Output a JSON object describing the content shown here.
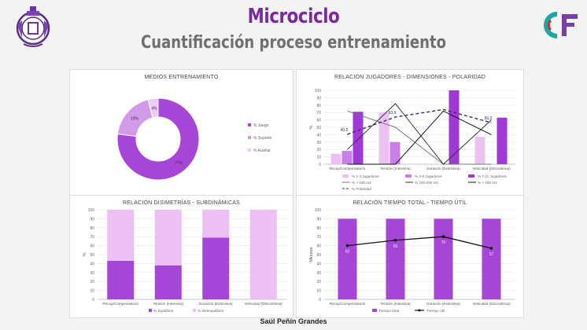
{
  "header": {
    "title": "Microciclo",
    "subtitle": "Cuantificación proceso entrenamiento",
    "footer": "Saúl Peñín Grandes"
  },
  "logos": {
    "left": "club-crest-logo",
    "right_text": "CF",
    "right_colors": [
      "#1aa6a1",
      "#c0392b",
      "#8e44ad"
    ]
  },
  "colors": {
    "purple_dark": "#9b30d0",
    "purple_mid": "#c474e6",
    "purple_light": "#e9b7f3",
    "line_black": "#111111"
  },
  "chart_data": [
    {
      "type": "pie",
      "title": "MEDIOS ENTRENAMIENTO",
      "donut": true,
      "slices": [
        {
          "label": "% Juego",
          "value": 77,
          "color": "#a646d6"
        },
        {
          "label": "% Soporte",
          "value": 19,
          "color": "#d49aea"
        },
        {
          "label": "% Auxiliar",
          "value": 4,
          "color": "#eecbf6"
        }
      ],
      "slice_labels": [
        "77%",
        "19%",
        "4%"
      ],
      "legend_position": "right"
    },
    {
      "type": "bar",
      "title": "RELACIÓN JUGADORES - DIMENSIONES - POLARIDAD",
      "categories": [
        "Recup/Compensatorio",
        "Tensión (Intensiva)",
        "Duración (Extensiva)",
        "Velocidad (Discontinua)"
      ],
      "ylabel": "%",
      "ylim": [
        0,
        100
      ],
      "yticks": [
        0,
        10,
        20,
        30,
        40,
        50,
        60,
        70,
        80,
        90,
        100
      ],
      "series": [
        {
          "name": "% 1-3 Jugadores",
          "kind": "bar",
          "color": "#ecc0f5",
          "values": [
            14,
            70,
            0,
            37
          ]
        },
        {
          "name": "% 4-6 Jugadores",
          "kind": "bar",
          "color": "#c97ee8",
          "values": [
            18,
            30,
            0,
            0
          ]
        },
        {
          "name": "% 7-11 Jugadores",
          "kind": "bar",
          "color": "#a038d6",
          "values": [
            71,
            0,
            100,
            63
          ]
        },
        {
          "name": "% < 100 m2",
          "kind": "line",
          "color": "#777777",
          "values": [
            72,
            50,
            0,
            0
          ]
        },
        {
          "name": "% 100-200 m2",
          "kind": "line",
          "color": "#333333",
          "values": [
            20,
            82,
            0,
            60
          ]
        },
        {
          "name": "% > 200 m2",
          "kind": "line",
          "color": "#111111",
          "values": [
            0,
            0,
            72,
            40
          ]
        },
        {
          "name": "% Polaridad",
          "kind": "dashed",
          "color": "#3a2a6e",
          "values": [
            40.5,
            63.9,
            74,
            56.2
          ]
        }
      ],
      "data_labels": [
        "40,5",
        "63,9",
        "56,2"
      ],
      "legend_position": "bottom"
    },
    {
      "type": "bar",
      "stacked": true,
      "title": "RELACIÓN DISIMETRÍAS - SUBDINÁMICAS",
      "categories": [
        "Recup/Compensatorio",
        "Tensión (Intensiva)",
        "Duración (Extensiva)",
        "Velocidad (Discontinua)"
      ],
      "ylabel": "%",
      "ylim": [
        0,
        100
      ],
      "yticks": [
        0,
        10,
        20,
        30,
        40,
        50,
        60,
        70,
        80,
        90,
        100
      ],
      "series": [
        {
          "name": "% Equilibrio",
          "color": "#a646d6",
          "values": [
            43,
            38,
            69,
            0
          ]
        },
        {
          "name": "% Desequilibrio",
          "color": "#ecc0f5",
          "values": [
            57,
            62,
            31,
            100
          ]
        }
      ],
      "legend_position": "bottom"
    },
    {
      "type": "bar",
      "title": "RELACIÓN TIEMPO TOTAL - TIEMPO ÚTIL",
      "categories": [
        "Recup/Compensatorio",
        "Tensión (Intensiva)",
        "Duración (Extensiva)",
        "Velocidad (Discontinua)"
      ],
      "ylabel": "Minutos",
      "ylim": [
        0,
        100
      ],
      "yticks": [
        0,
        10,
        20,
        30,
        40,
        50,
        60,
        70,
        80,
        90,
        100
      ],
      "series": [
        {
          "name": "Tiempo total",
          "kind": "bar",
          "color": "#a646d6",
          "values": [
            90,
            90,
            90,
            90
          ]
        },
        {
          "name": "Tiempo útil",
          "kind": "line",
          "color": "#111111",
          "values": [
            60,
            66,
            70,
            57
          ]
        }
      ],
      "data_labels": [
        "60",
        "66",
        "70",
        "57"
      ],
      "legend_position": "bottom"
    }
  ]
}
